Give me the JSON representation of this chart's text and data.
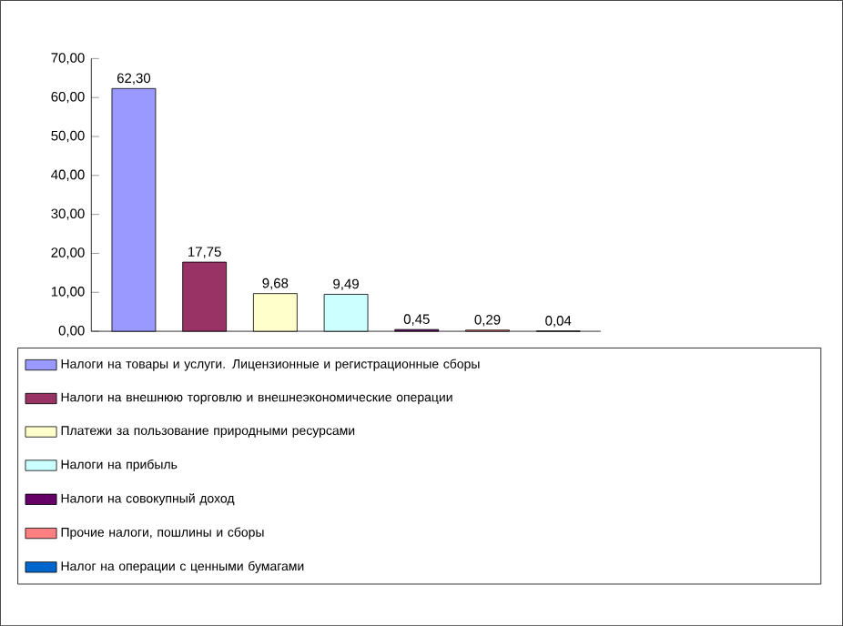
{
  "chart_data": {
    "type": "bar",
    "categories": [
      null,
      null,
      null,
      null,
      null,
      null,
      null
    ],
    "series": [
      {
        "name": "Налоги на товары и услуги. Лицензионные и регистрационные сборы",
        "color": "#9999ff",
        "values": [
          62.3,
          null,
          null,
          null,
          null,
          null,
          null
        ],
        "value_labels": [
          "62,30",
          null,
          null,
          null,
          null,
          null,
          null
        ]
      },
      {
        "name": "Налоги на внешнюю торговлю и внешнеэкономические операции",
        "color": "#993366",
        "values": [
          null,
          17.75,
          null,
          null,
          null,
          null,
          null
        ],
        "value_labels": [
          null,
          "17,75",
          null,
          null,
          null,
          null,
          null
        ]
      },
      {
        "name": "Платежи за пользование природными ресурсами",
        "color": "#ffffcc",
        "values": [
          null,
          null,
          9.68,
          null,
          null,
          null,
          null
        ],
        "value_labels": [
          null,
          null,
          "9,68",
          null,
          null,
          null,
          null
        ]
      },
      {
        "name": "Налоги на прибыль",
        "color": "#ccffff",
        "values": [
          null,
          null,
          null,
          9.49,
          null,
          null,
          null
        ],
        "value_labels": [
          null,
          null,
          null,
          "9,49",
          null,
          null,
          null
        ]
      },
      {
        "name": "Налоги на совокупный доход",
        "color": "#660066",
        "values": [
          null,
          null,
          null,
          null,
          0.45,
          null,
          null
        ],
        "value_labels": [
          null,
          null,
          null,
          null,
          "0,45",
          null,
          null
        ]
      },
      {
        "name": "Прочие налоги, пошлины и сборы",
        "color": "#ff8080",
        "values": [
          null,
          null,
          null,
          null,
          null,
          0.29,
          null
        ],
        "value_labels": [
          null,
          null,
          null,
          null,
          null,
          "0,29",
          null
        ]
      },
      {
        "name": "Налог на операции с ценными бумагами",
        "color": "#0066cc",
        "values": [
          null,
          null,
          null,
          null,
          null,
          null,
          0.04
        ],
        "value_labels": [
          null,
          null,
          null,
          null,
          null,
          null,
          "0,04"
        ]
      }
    ],
    "ylim": [
      0,
      70
    ],
    "yticks": [
      {
        "value": 0,
        "label": "0,00"
      },
      {
        "value": 10,
        "label": "10,00"
      },
      {
        "value": 20,
        "label": "20,00"
      },
      {
        "value": 30,
        "label": "30,00"
      },
      {
        "value": 40,
        "label": "40,00"
      },
      {
        "value": 50,
        "label": "50,00"
      },
      {
        "value": 60,
        "label": "60,00"
      },
      {
        "value": 70,
        "label": "70,00"
      }
    ],
    "legend": "bottom"
  }
}
